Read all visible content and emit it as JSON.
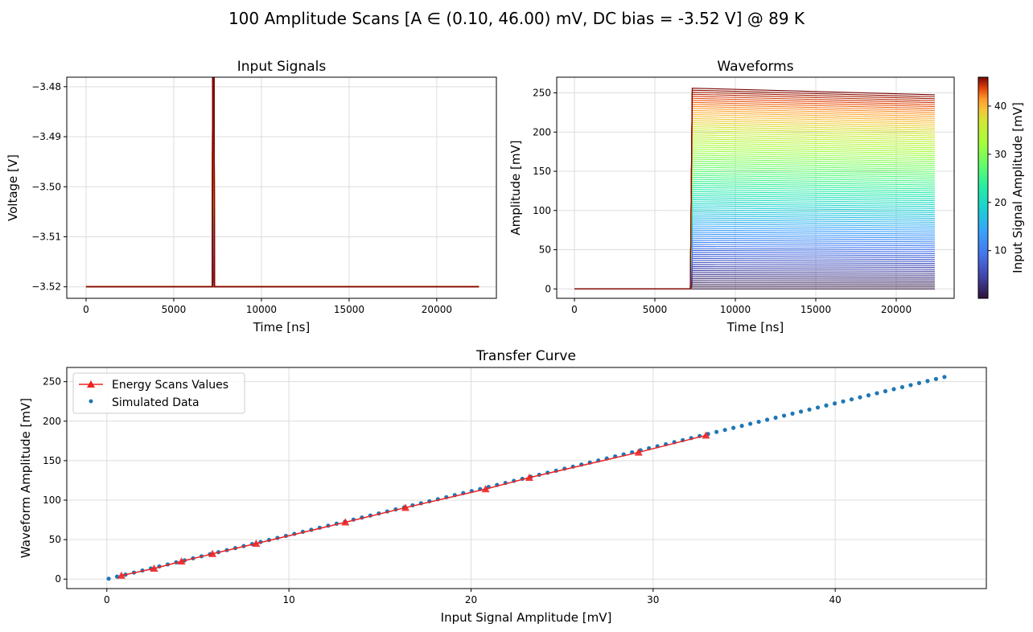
{
  "suptitle": "100 Amplitude Scans [A ∈ (0.10, 46.00) mV, DC bias = -3.52 V] @ 89 K",
  "chart_data": [
    {
      "type": "line",
      "title": "Input Signals",
      "xlabel": "Time [ns]",
      "ylabel": "Voltage [V]",
      "xlim": [
        -1100,
        23400
      ],
      "ylim": [
        -3.5223,
        -3.4781
      ],
      "xticks": [
        0,
        5000,
        10000,
        15000,
        20000
      ],
      "yticks": [
        -3.52,
        -3.51,
        -3.5,
        -3.49,
        -3.48
      ],
      "ytick_labels": [
        "−3.52",
        "−3.51",
        "−3.50",
        "−3.49",
        "−3.48"
      ],
      "grid": true,
      "baseline": -3.52,
      "pulse_start": 7200,
      "pulse_end": 7320,
      "pulse_peak": -3.474,
      "x_range": [
        0,
        22400
      ],
      "series_count": 100,
      "colormap": "turbo"
    },
    {
      "type": "line",
      "title": "Waveforms",
      "xlabel": "Time [ns]",
      "ylabel": "Amplitude [mV]",
      "xlim": [
        -1100,
        23600
      ],
      "ylim": [
        -12,
        270
      ],
      "xticks": [
        0,
        5000,
        10000,
        15000,
        20000
      ],
      "yticks": [
        0,
        50,
        100,
        150,
        200,
        250
      ],
      "grid": true,
      "rise_start": 7200,
      "rise_end": 7320,
      "x_end": 22400,
      "peak_max": 256,
      "end_max": 247.5,
      "series_count": 100,
      "colorbar": {
        "label": "Input Signal Amplitude [mV]",
        "range": [
          0.1,
          46.0
        ],
        "ticks": [
          10,
          20,
          30,
          40
        ],
        "colormap": "turbo"
      }
    },
    {
      "type": "scatter",
      "title": "Transfer Curve",
      "xlabel": "Input Signal Amplitude [mV]",
      "ylabel": "Waveform Amplitude [mV]",
      "xlim": [
        -2.2,
        48.3
      ],
      "ylim": [
        -12,
        268
      ],
      "xticks": [
        0,
        10,
        20,
        30,
        40
      ],
      "yticks": [
        0,
        50,
        100,
        150,
        200,
        250
      ],
      "grid": true,
      "legend": "upper-left",
      "series": [
        {
          "name": "Energy Scans Values",
          "kind": "line-marker",
          "color": "#ee2222",
          "x": [
            0.8,
            2.6,
            4.1,
            5.8,
            8.2,
            13.1,
            16.4,
            20.8,
            23.2,
            29.2,
            32.9
          ],
          "y": [
            4.5,
            13.5,
            22.5,
            32,
            45,
            72,
            90.5,
            114,
            128.5,
            160.5,
            182
          ]
        },
        {
          "name": "Simulated Data",
          "kind": "scatter",
          "color": "#1f77b4",
          "x_start": 0.1,
          "x_end": 46.0,
          "count": 100,
          "slope": 5.565
        }
      ]
    }
  ]
}
